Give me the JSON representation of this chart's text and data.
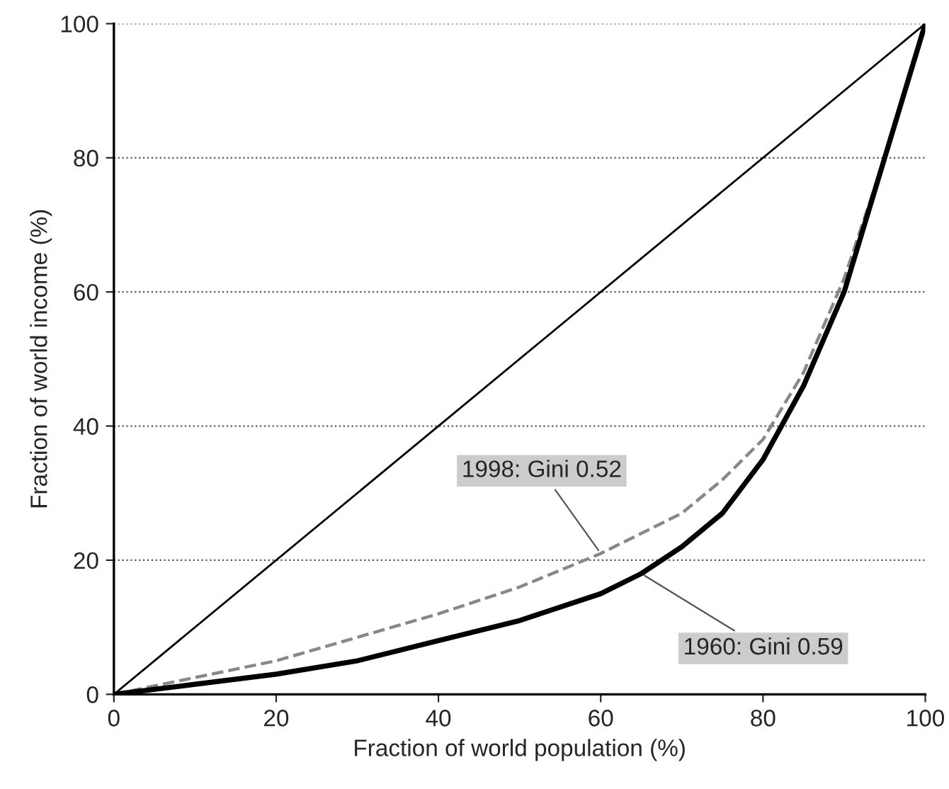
{
  "chart_data": {
    "type": "line",
    "xlabel": "Fraction of world population (%)",
    "ylabel": "Fraction of world income (%)",
    "xlim": [
      0,
      100
    ],
    "ylim": [
      0,
      100
    ],
    "xticks": [
      0,
      20,
      40,
      60,
      80,
      100
    ],
    "yticks": [
      0,
      20,
      40,
      60,
      80,
      100
    ],
    "grid": "y",
    "series": [
      {
        "color": "#000000",
        "line_style": "solid",
        "x": [
          0,
          100
        ],
        "values": [
          0,
          100
        ]
      },
      {
        "color": "#888888",
        "line_style": "dashed",
        "x": [
          0,
          10,
          20,
          30,
          40,
          50,
          60,
          70,
          75,
          80,
          85,
          90,
          95,
          100
        ],
        "values": [
          0,
          2.5,
          5,
          8.5,
          12,
          16,
          21,
          27,
          32,
          38,
          48,
          62,
          80,
          100
        ]
      },
      {
        "color": "#000000",
        "line_style": "solid",
        "x": [
          0,
          10,
          20,
          30,
          40,
          50,
          60,
          65,
          70,
          75,
          80,
          85,
          90,
          95,
          100
        ],
        "values": [
          0,
          1.5,
          3,
          5,
          8,
          11,
          15,
          18,
          22,
          27,
          35,
          46,
          60,
          80,
          100
        ]
      }
    ],
    "annotations": [
      {
        "text": "1998: Gini 0.52",
        "x": 60,
        "y": 21
      },
      {
        "text": "1960: Gini 0.59",
        "x": 65,
        "y": 18
      }
    ]
  }
}
